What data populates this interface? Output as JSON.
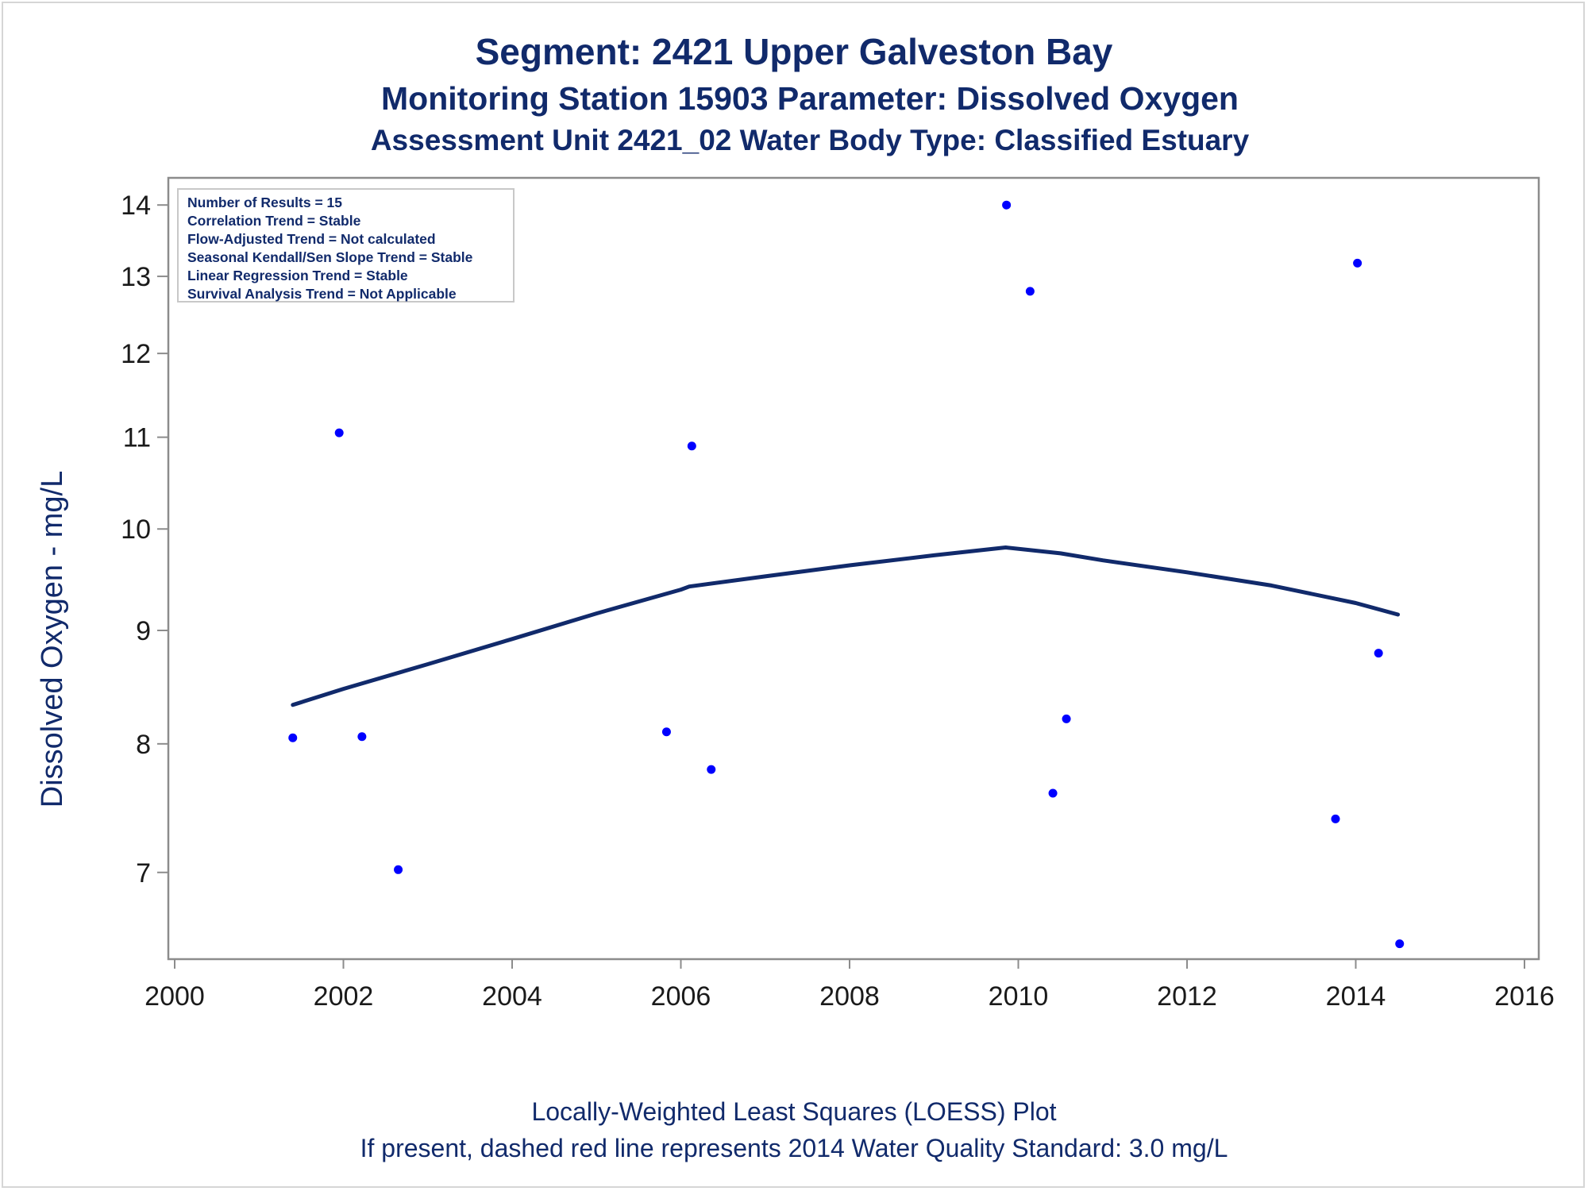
{
  "title": "Segment: 2421  Upper Galveston Bay",
  "subtitle": "Monitoring Station 15903 Parameter: Dissolved Oxygen",
  "subtitle2": "Assessment Unit 2421_02   Water Body Type: Classified Estuary",
  "footnote1": "Locally-Weighted Least Squares (LOESS) Plot",
  "footnote2": "If present, dashed red line represents 2014 Water Quality Standard: 3.0 mg/L",
  "legend": [
    "Number of Results = 15",
    "Correlation Trend = Stable",
    "Flow-Adjusted Trend = Not calculated",
    "Seasonal Kendall/Sen Slope Trend = Stable",
    "Linear Regression Trend = Stable",
    "Survival Analysis Trend = Not Applicable"
  ],
  "colors": {
    "points": "#0000ff",
    "loess": "#112a6b",
    "text": "#112a6b",
    "axis": "#8c8c8c"
  },
  "chart_data": {
    "type": "scatter",
    "ylabel": "Dissolved Oxygen - mg/L",
    "xlabel": "",
    "y_scale": "log",
    "xlim": [
      2000,
      2016
    ],
    "ylim": [
      6.45,
      14.2
    ],
    "x_ticks": [
      2000,
      2002,
      2004,
      2006,
      2008,
      2010,
      2012,
      2014,
      2016
    ],
    "y_ticks": [
      7,
      8,
      9,
      10,
      11,
      12,
      13,
      14
    ],
    "grid": false,
    "legend_position": "top-left",
    "points": [
      {
        "x": 2001.4,
        "y": 8.05
      },
      {
        "x": 2001.95,
        "y": 11.05
      },
      {
        "x": 2002.22,
        "y": 8.06
      },
      {
        "x": 2002.65,
        "y": 7.02
      },
      {
        "x": 2005.83,
        "y": 8.1
      },
      {
        "x": 2006.13,
        "y": 10.9
      },
      {
        "x": 2006.36,
        "y": 7.79
      },
      {
        "x": 2009.86,
        "y": 14.0
      },
      {
        "x": 2010.14,
        "y": 12.8
      },
      {
        "x": 2010.41,
        "y": 7.6
      },
      {
        "x": 2010.57,
        "y": 8.21
      },
      {
        "x": 2013.76,
        "y": 7.4
      },
      {
        "x": 2014.02,
        "y": 13.18
      },
      {
        "x": 2014.27,
        "y": 8.79
      },
      {
        "x": 2014.52,
        "y": 6.5
      }
    ],
    "loess": {
      "x": [
        2001.4,
        2002.0,
        2003.0,
        2004.0,
        2005.0,
        2006.0,
        2006.1,
        2007.0,
        2008.0,
        2009.0,
        2009.85,
        2010.5,
        2011.0,
        2012.0,
        2013.0,
        2014.0,
        2014.5
      ],
      "y": [
        8.33,
        8.47,
        8.69,
        8.92,
        9.16,
        9.39,
        9.42,
        9.52,
        9.63,
        9.73,
        9.81,
        9.75,
        9.68,
        9.56,
        9.43,
        9.26,
        9.15
      ]
    }
  }
}
